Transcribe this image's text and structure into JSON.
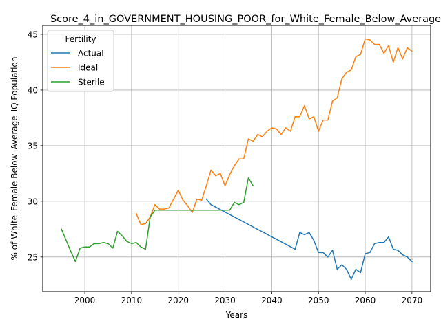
{
  "chart_data": {
    "type": "line",
    "title": "Score_4_in_GOVERNMENT_HOUSING_POOR_for_White_Female_Below_Average_IQ",
    "xlabel": "Years",
    "ylabel": "% of White_Female Below_Average_IQ Population",
    "xlim": [
      1991,
      2074
    ],
    "ylim": [
      21.9,
      45.8
    ],
    "xticks": [
      2000,
      2010,
      2020,
      2030,
      2040,
      2050,
      2060,
      2070
    ],
    "yticks": [
      25,
      30,
      35,
      40,
      45
    ],
    "grid": true,
    "legend": {
      "title": "Fertility",
      "placement": "top-left"
    },
    "series": [
      {
        "name": "Actual",
        "color": "#1f77b4",
        "x": [
          2026,
          2027,
          2045,
          2046,
          2047,
          2048,
          2049,
          2050,
          2051,
          2052,
          2053,
          2054,
          2055,
          2056,
          2057,
          2058,
          2059,
          2060,
          2061,
          2062,
          2063,
          2064,
          2065,
          2066,
          2067,
          2068,
          2069,
          2070
        ],
        "y": [
          30.2,
          29.7,
          25.7,
          27.2,
          27.0,
          27.2,
          26.5,
          25.4,
          25.4,
          25.0,
          25.6,
          23.9,
          24.3,
          23.9,
          23.0,
          23.9,
          23.6,
          25.3,
          25.4,
          26.2,
          26.3,
          26.3,
          26.8,
          25.7,
          25.6,
          25.2,
          25.0,
          24.6
        ]
      },
      {
        "name": "Ideal",
        "color": "#ff7f0e",
        "x": [
          2011,
          2012,
          2013,
          2014,
          2015,
          2016,
          2017,
          2018,
          2019,
          2020,
          2021,
          2022,
          2023,
          2024,
          2025,
          2026,
          2027,
          2028,
          2029,
          2030,
          2031,
          2032,
          2033,
          2034,
          2035,
          2036,
          2037,
          2038,
          2039,
          2040,
          2041,
          2042,
          2043,
          2044,
          2045,
          2046,
          2047,
          2048,
          2049,
          2050,
          2051,
          2052,
          2053,
          2054,
          2055,
          2056,
          2057,
          2058,
          2059,
          2060,
          2061,
          2062,
          2063,
          2064,
          2065,
          2066,
          2067,
          2068,
          2069,
          2070
        ],
        "y": [
          28.9,
          27.9,
          28.0,
          28.6,
          29.7,
          29.3,
          29.3,
          29.4,
          30.2,
          31.0,
          30.1,
          29.6,
          29.0,
          30.2,
          30.1,
          31.4,
          32.8,
          32.3,
          32.5,
          31.4,
          32.4,
          33.2,
          33.8,
          33.8,
          35.6,
          35.4,
          36.0,
          35.8,
          36.3,
          36.6,
          36.5,
          36.0,
          36.6,
          36.3,
          37.6,
          37.6,
          38.6,
          37.4,
          37.6,
          36.3,
          37.3,
          37.3,
          39.0,
          39.3,
          41.0,
          41.6,
          41.8,
          43.0,
          43.2,
          44.6,
          44.5,
          44.1,
          44.1,
          43.3,
          44.0,
          42.5,
          43.8,
          42.8,
          43.8,
          43.5
        ]
      },
      {
        "name": "Sterile",
        "color": "#2ca02c",
        "x": [
          1995,
          1996,
          1997,
          1998,
          1999,
          2000,
          2001,
          2002,
          2003,
          2004,
          2005,
          2006,
          2007,
          2008,
          2009,
          2010,
          2011,
          2012,
          2013,
          2014,
          2015,
          2016,
          2017,
          2018,
          2019,
          2020,
          2021,
          2022,
          2023,
          2024,
          2025,
          2026,
          2027,
          2028,
          2029,
          2030,
          2031,
          2032,
          2033,
          2034,
          2035,
          2036
        ],
        "y": [
          27.5,
          26.5,
          25.5,
          24.6,
          25.8,
          25.9,
          25.9,
          26.2,
          26.2,
          26.3,
          26.2,
          25.8,
          27.3,
          26.9,
          26.4,
          26.2,
          26.3,
          25.9,
          25.7,
          28.6,
          29.2,
          29.2,
          29.2,
          29.2,
          29.2,
          29.2,
          29.2,
          29.2,
          29.2,
          29.2,
          29.2,
          29.2,
          29.2,
          29.2,
          29.2,
          29.2,
          29.2,
          29.9,
          29.7,
          29.9,
          32.1,
          31.4
        ]
      }
    ]
  }
}
